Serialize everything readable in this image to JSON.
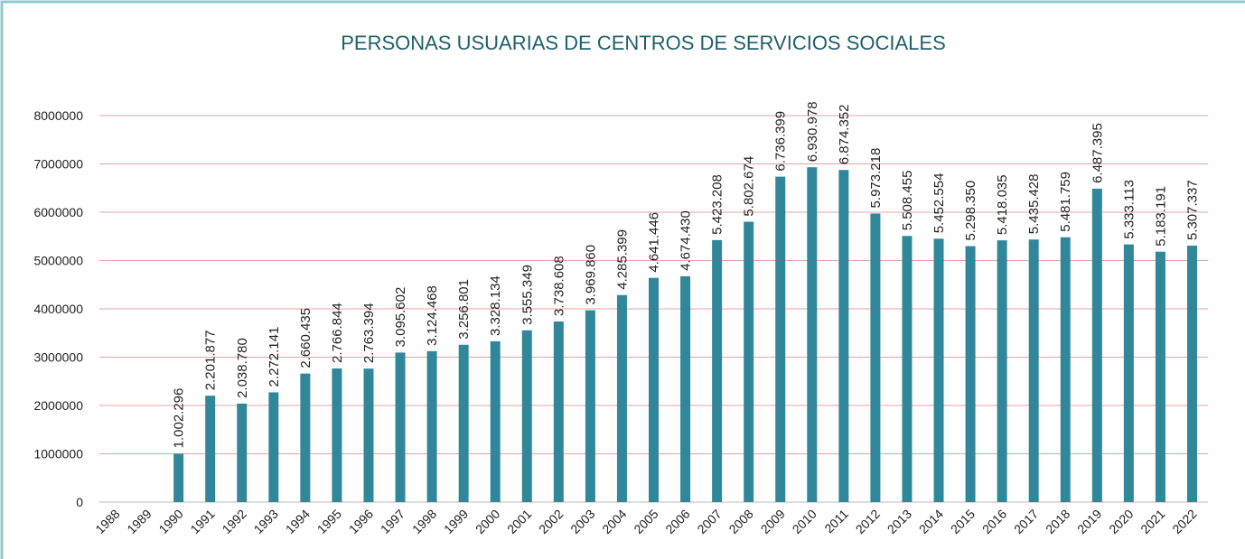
{
  "chart_data": {
    "type": "bar",
    "title": "PERSONAS USUARIAS DE CENTROS DE SERVICIOS SOCIALES",
    "categories": [
      "1988",
      "1989",
      "1990",
      "1991",
      "1992",
      "1993",
      "1994",
      "1995",
      "1996",
      "1997",
      "1998",
      "1999",
      "2000",
      "2001",
      "2002",
      "2003",
      "2004",
      "2005",
      "2006",
      "2007",
      "2008",
      "2009",
      "2010",
      "2011",
      "2012",
      "2013",
      "2014",
      "2015",
      "2016",
      "2017",
      "2018",
      "2019",
      "2020",
      "2021",
      "2022"
    ],
    "values": [
      null,
      null,
      1002296,
      2201877,
      2038780,
      2272141,
      2660435,
      2766844,
      2763394,
      3095602,
      3124468,
      3256801,
      3328134,
      3555349,
      3738608,
      3969860,
      4285399,
      4641446,
      4674430,
      5423208,
      5802674,
      6736399,
      6930978,
      6874352,
      5973218,
      5508455,
      5452554,
      5298350,
      5418035,
      5435428,
      5481759,
      6487395,
      5333113,
      5183191,
      5307337
    ],
    "value_labels": [
      null,
      null,
      "1.002.296",
      "2.201.877",
      "2.038.780",
      "2.272.141",
      "2.660.435",
      "2.766.844",
      "2.763.394",
      "3.095.602",
      "3.124.468",
      "3.256.801",
      "3.328.134",
      "3.555.349",
      "3.738.608",
      "3.969.860",
      "4.285.399",
      "4.641.446",
      "4.674.430",
      "5.423.208",
      "5.802.674",
      "6.736.399",
      "6.930.978",
      "6.874.352",
      "5.973.218",
      "5.508.455",
      "5.452.554",
      "5.298.350",
      "5.418.035",
      "5.435.428",
      "5.481.759",
      "6.487.395",
      "5.333.113",
      "5.183.191",
      "5.307.337"
    ],
    "color": "#31879a",
    "ylim": [
      0,
      8000000
    ],
    "yticks": [
      0,
      1000000,
      2000000,
      3000000,
      4000000,
      5000000,
      6000000,
      7000000,
      8000000
    ],
    "grid": true
  }
}
